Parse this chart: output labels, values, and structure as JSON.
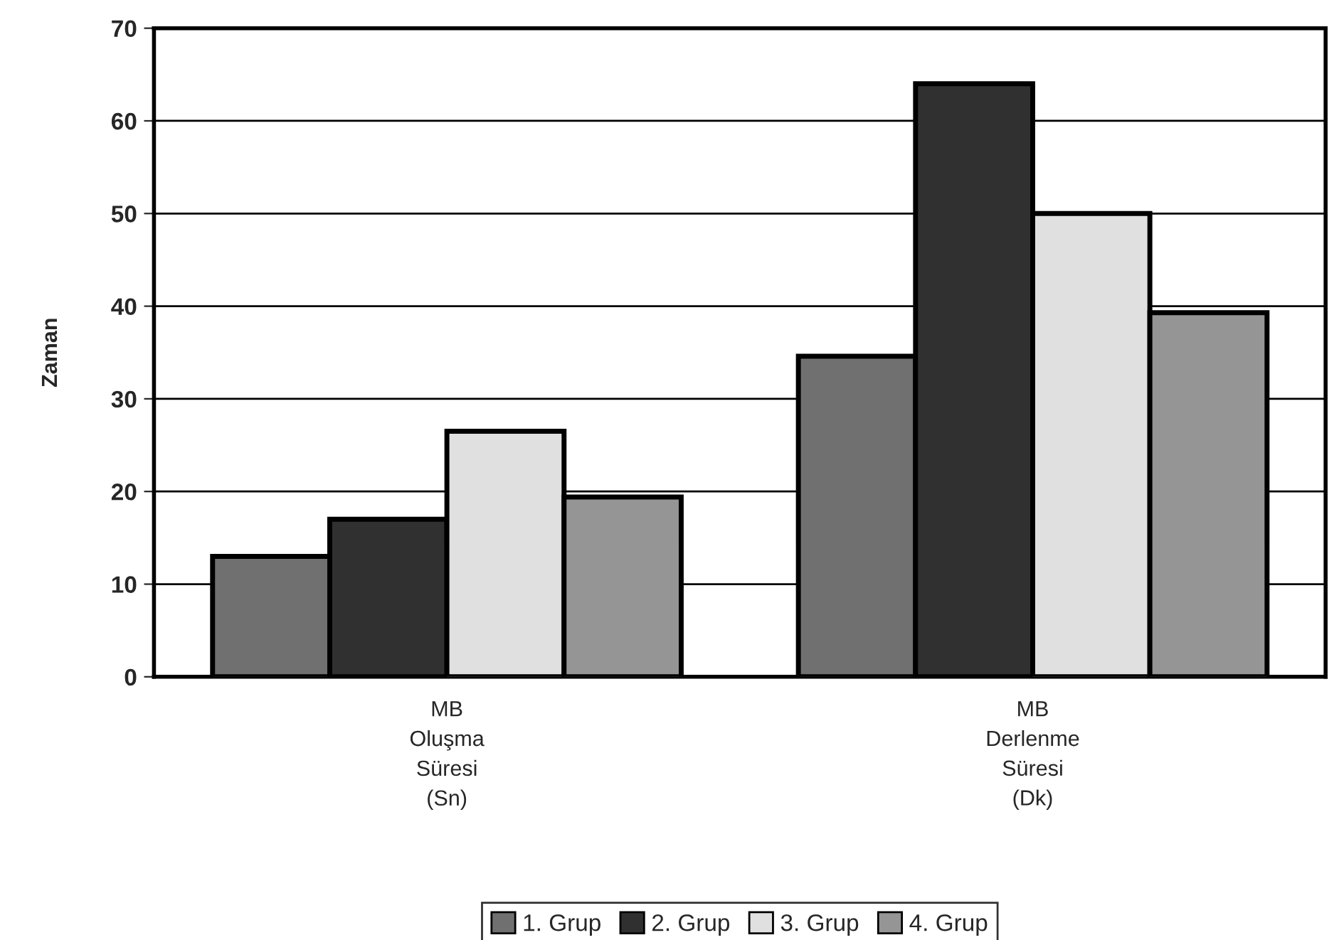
{
  "chart_data": {
    "type": "bar",
    "ylabel": "Zaman",
    "categories": [
      "MB\nOluşma\nSüresi\n(Sn)",
      "MB\nDerlenme\nSüresi\n(Dk)"
    ],
    "series": [
      {
        "name": "1. Grup",
        "color": "#707070",
        "values": [
          13.0,
          34.6
        ]
      },
      {
        "name": "2. Grup",
        "color": "#303030",
        "values": [
          17.0,
          64.0
        ]
      },
      {
        "name": "3. Grup",
        "color": "#e0e0e0",
        "values": [
          26.5,
          50.0
        ]
      },
      {
        "name": "4. Grup",
        "color": "#959595",
        "values": [
          19.4,
          39.3
        ]
      }
    ],
    "ylim": [
      0,
      70
    ],
    "yticks": [
      0,
      10,
      20,
      30,
      40,
      50,
      60,
      70
    ],
    "grid": "y",
    "legend": "bottom"
  }
}
